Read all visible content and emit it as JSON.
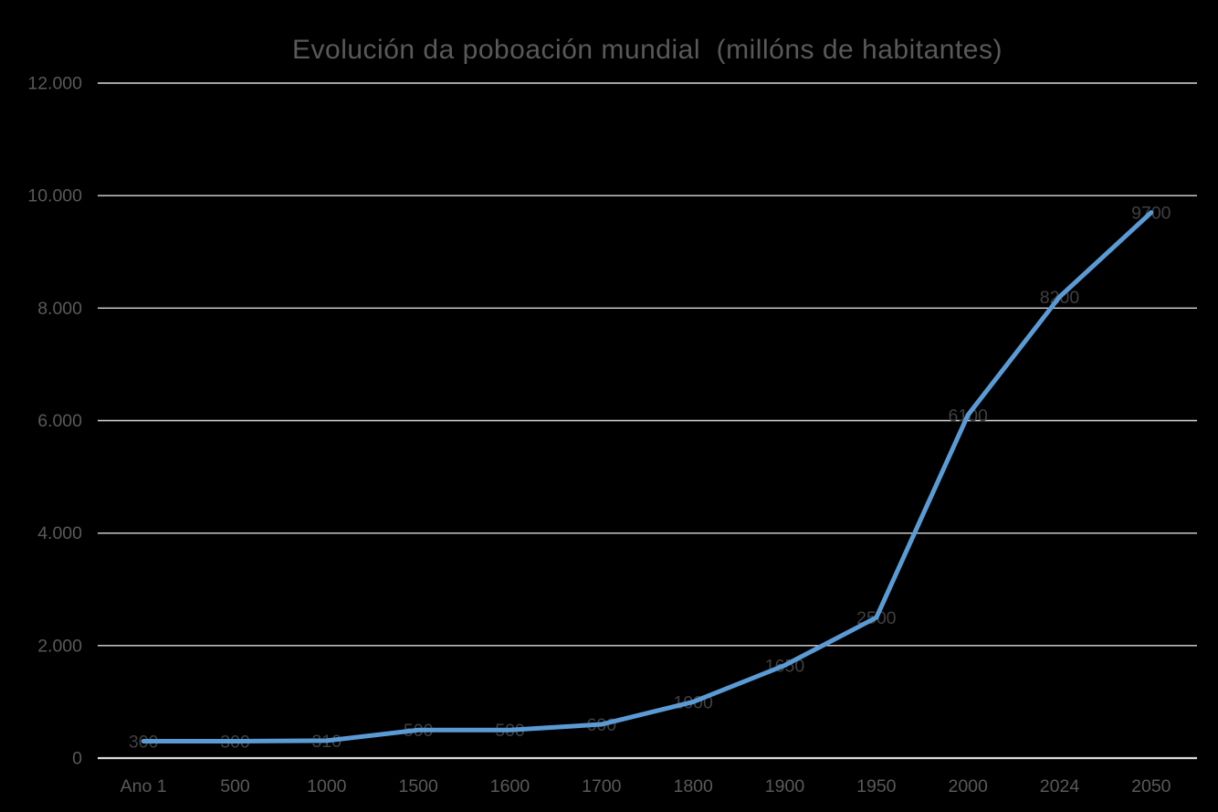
{
  "chart_data": {
    "type": "line",
    "title": "Evolución da poboación mundial  (millóns de habitantes)",
    "categories": [
      "Ano 1",
      "500",
      "1000",
      "1500",
      "1600",
      "1700",
      "1800",
      "1900",
      "1950",
      "2000",
      "2024",
      "2050"
    ],
    "values": [
      300,
      300,
      310,
      500,
      500,
      600,
      1000,
      1650,
      2500,
      6100,
      8200,
      9700
    ],
    "data_labels": [
      "300",
      "300",
      "310",
      "500",
      "500",
      "600",
      "1000",
      "1650",
      "2500",
      "6100",
      "8200",
      "9700"
    ],
    "xlabel": "",
    "ylabel": "",
    "ylim": [
      0,
      12000
    ],
    "y_tick_interval": 2000,
    "y_tick_labels": [
      "0",
      "2.000",
      "4.000",
      "6.000",
      "8.000",
      "10.000",
      "12.000"
    ],
    "grid": true,
    "legend": false,
    "colors": {
      "line": "#5B9BD5",
      "grid": "#D9D9D9",
      "axis_line": "#D9D9D9",
      "axis_text": "#595959",
      "data_label_text": "#404040",
      "title_text": "#595959",
      "background": "#000000"
    }
  }
}
